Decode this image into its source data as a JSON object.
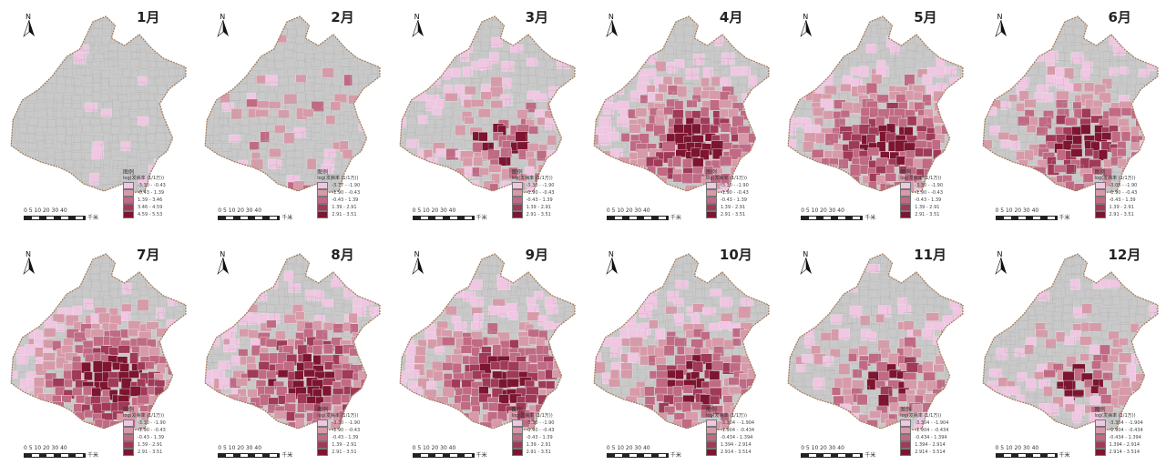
{
  "panels": [
    {
      "title": "1月",
      "level": 0.05,
      "legend": {
        "title": "图例",
        "subtitle": "log(发病率 (1/1万))",
        "items": [
          "-3.30 - -0.43",
          "-0.43 - 1.39",
          "1.39 - 3.46",
          "3.46 - 4.59",
          "4.59 - 5.53"
        ]
      }
    },
    {
      "title": "2月",
      "level": 0.25,
      "legend": {
        "title": "图例",
        "subtitle": "log(发病率 (1/1万))",
        "items": [
          "-3.77 - -1.90",
          "-1.90 - -0.43",
          "-0.43 - 1.39",
          "1.39 - 2.91",
          "2.91 - 3.51"
        ]
      }
    },
    {
      "title": "3月",
      "level": 0.5,
      "legend": {
        "title": "图例",
        "subtitle": "log(发病率 (1/1万))",
        "items": [
          "-3.30 - -1.90",
          "-1.90 - -0.43",
          "-0.43 - 1.39",
          "1.39 - 2.91",
          "2.91 - 3.51"
        ]
      }
    },
    {
      "title": "4月",
      "level": 0.8,
      "legend": {
        "title": "图例",
        "subtitle": "log(发病率 (1/1万))",
        "items": [
          "-3.30 - -1.90",
          "-1.90 - -0.43",
          "-0.43 - 1.39",
          "1.39 - 2.91",
          "2.91 - 3.51"
        ]
      }
    },
    {
      "title": "5月",
      "level": 0.85,
      "legend": {
        "title": "图例",
        "subtitle": "log(发病率 (1/1万))",
        "items": [
          "-3.30 - -1.90",
          "-1.90 - -0.43",
          "-0.43 - 1.39",
          "1.39 - 2.91",
          "2.91 - 3.51"
        ]
      }
    },
    {
      "title": "6月",
      "level": 0.75,
      "legend": {
        "title": "图例",
        "subtitle": "log(发病率 (1/1万))",
        "items": [
          "-3.08 - -1.90",
          "-1.90 - -0.43",
          "-0.43 - 1.39",
          "1.39 - 2.91",
          "2.91 - 3.51"
        ]
      }
    },
    {
      "title": "7月",
      "level": 0.9,
      "legend": {
        "title": "图例",
        "subtitle": "log(发病率 (1/1万))",
        "items": [
          "-3.30 - -1.90",
          "-1.90 - -0.43",
          "-0.43 - 1.39",
          "1.39 - 2.91",
          "2.91 - 3.51"
        ]
      }
    },
    {
      "title": "8月",
      "level": 0.92,
      "legend": {
        "title": "图例",
        "subtitle": "log(发病率 (1/1万))",
        "items": [
          "-3.30 - -1.90",
          "-1.90 - -0.43",
          "-0.43 - 1.39",
          "1.39 - 2.91",
          "2.91 - 3.51"
        ]
      }
    },
    {
      "title": "9月",
      "level": 0.85,
      "legend": {
        "title": "图例",
        "subtitle": "log(发病率 (1/1万))",
        "items": [
          "-3.30 - -1.90",
          "-1.90 - -0.43",
          "-0.43 - 1.39",
          "1.39 - 2.91",
          "2.91 - 3.51"
        ]
      }
    },
    {
      "title": "10月",
      "level": 0.75,
      "legend": {
        "title": "图例",
        "subtitle": "log(发病率 (1/1万))",
        "items": [
          "-3.304 - -1.904",
          "-1.904 - -0.434",
          "-0.434 - 1.394",
          "1.394 - 2.914",
          "2.914 - 3.514"
        ]
      }
    },
    {
      "title": "11月",
      "level": 0.6,
      "legend": {
        "title": "图例",
        "subtitle": "log(发病率 (1/1万))",
        "items": [
          "-3.304 - -1.904",
          "-1.904 - -0.434",
          "-0.434 - 1.394",
          "1.394 - 2.914",
          "2.914 - 3.514"
        ]
      }
    },
    {
      "title": "12月",
      "level": 0.45,
      "legend": {
        "title": "图例",
        "subtitle": "log(发病率 (1/1万))",
        "items": [
          "-3.304 - -1.904",
          "-1.904 - -0.434",
          "-0.434 - 1.394",
          "1.394 - 2.914",
          "2.914 - 3.514"
        ]
      }
    }
  ],
  "scale": {
    "numbers": "0 5 10  20   30   40",
    "unit": "千米"
  },
  "north_label": "N",
  "colors": {
    "base": "#c9c9c9",
    "border": "#a07a5a",
    "classes": [
      "#f0c6e2",
      "#d79aa9",
      "#c06a84",
      "#a03a58",
      "#7d1530"
    ]
  }
}
